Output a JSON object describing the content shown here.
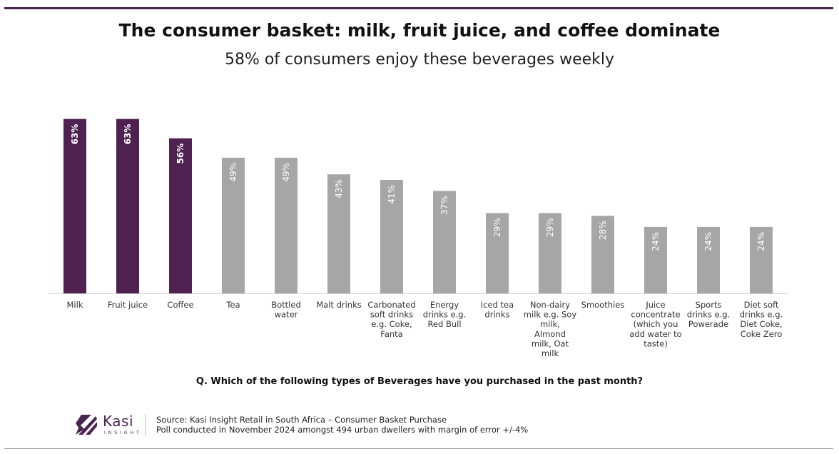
{
  "header": {
    "title": "The consumer basket: milk, fruit juice, and coffee dominate",
    "subtitle": "58% of consumers enjoy these beverages weekly"
  },
  "chart_data": {
    "type": "bar",
    "categories": [
      "Milk",
      "Fruit juice",
      "Coffee",
      "Tea",
      "Bottled water",
      "Malt drinks",
      "Carbonated soft drinks e.g. Coke, Fanta",
      "Energy drinks e.g. Red Bull",
      "Iced tea drinks",
      "Non-dairy milk e.g. Soy milk, Almond milk, Oat milk",
      "Smoothies",
      "Juice concentrate (which you add water to taste)",
      "Sports drinks e.g. Powerade",
      "Diet soft drinks e.g. Diet Coke, Coke Zero"
    ],
    "category_lines": [
      [
        "Milk"
      ],
      [
        "Fruit juice"
      ],
      [
        "Coffee"
      ],
      [
        "Tea"
      ],
      [
        "Bottled",
        "water"
      ],
      [
        "Malt drinks"
      ],
      [
        "Carbonated",
        "soft drinks",
        "e.g. Coke,",
        "Fanta"
      ],
      [
        "Energy",
        "drinks e.g.",
        "Red Bull"
      ],
      [
        "Iced tea",
        "drinks"
      ],
      [
        "Non-dairy",
        "milk e.g. Soy",
        "milk,",
        "Almond",
        "milk, Oat",
        "milk"
      ],
      [
        "Smoothies"
      ],
      [
        "Juice",
        "concentrate",
        "(which you",
        "add water to",
        "taste)"
      ],
      [
        "Sports",
        "drinks e.g.",
        "Powerade"
      ],
      [
        "Diet soft",
        "drinks e.g.",
        "Diet Coke,",
        "Coke Zero"
      ]
    ],
    "values": [
      63,
      63,
      56,
      49,
      49,
      43,
      41,
      37,
      29,
      29,
      28,
      24,
      24,
      24
    ],
    "value_labels": [
      "63%",
      "63%",
      "56%",
      "49%",
      "49%",
      "43%",
      "41%",
      "37%",
      "29%",
      "29%",
      "28%",
      "24%",
      "24%",
      "24%"
    ],
    "highlight": [
      true,
      true,
      true,
      false,
      false,
      false,
      false,
      false,
      false,
      false,
      false,
      false,
      false,
      false
    ],
    "colors": {
      "highlight": "#4e2150",
      "default": "#a6a6a6",
      "axis": "#d0d0d0"
    },
    "ylim": [
      0,
      66
    ],
    "grid": false,
    "legend": "none"
  },
  "question": "Q. Which of the following types of Beverages have you purchased in the past month?",
  "footer": {
    "logo_word": "Kasi",
    "logo_sub": "INSIGHT",
    "source_line1": "Source: Kasi Insight Retail in South Africa – Consumer Basket Purchase",
    "source_line2": "Poll conducted in November 2024 amongst 494 urban dwellers with margin of error +/-4%"
  }
}
